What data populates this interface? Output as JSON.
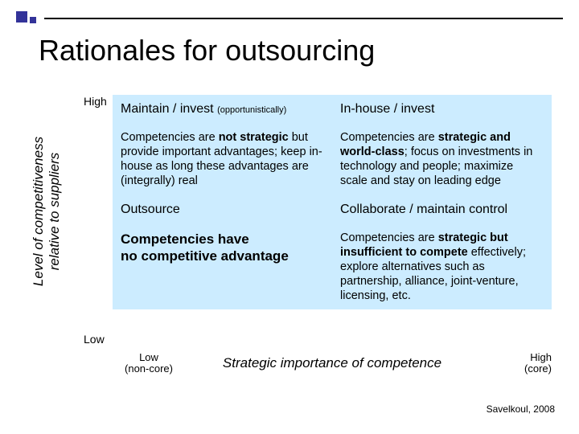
{
  "title": "Rationales for outsourcing",
  "y_axis": {
    "label": "Level of competitiveness\nrelative to suppliers",
    "high": "High",
    "low": "Low"
  },
  "x_axis": {
    "label": "Strategic importance of competence",
    "low": "Low",
    "low_sub": "(non-core)",
    "high": "High",
    "high_sub": "(core)"
  },
  "matrix": {
    "bg_color": "#ccecff",
    "top_left": {
      "header": "Maintain / invest",
      "header_sub": "(opportunistically)",
      "body_lead": "Competencies are ",
      "body_bold": "not strategic",
      "body_rest": " but provide important advantages; keep in-house as long these advantages are (integrally) real"
    },
    "top_right": {
      "header": "In-house / invest",
      "body_lead": "Competencies are ",
      "body_bold": "strategic and world-class",
      "body_rest": "; focus on investments in technology and people; maximize scale and stay on leading edge"
    },
    "bottom_left": {
      "header": "Outsource",
      "body_bold1": "Competencies have",
      "body_bold2": "no competitive advantage"
    },
    "bottom_right": {
      "header": "Collaborate /  maintain control",
      "body_lead": "Competencies are ",
      "body_bold": "strategic but insufficient to compete",
      "body_rest": " effectively; explore alternatives such as partnership, alliance, joint-venture, licensing, etc."
    }
  },
  "attribution": "Savelkoul, 2008"
}
